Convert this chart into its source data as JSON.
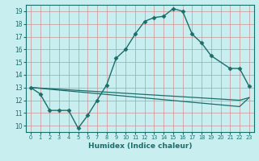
{
  "title": "",
  "xlabel": "Humidex (Indice chaleur)",
  "xlim": [
    -0.5,
    23.5
  ],
  "ylim": [
    9.5,
    19.5
  ],
  "xticks": [
    0,
    1,
    2,
    3,
    4,
    5,
    6,
    7,
    8,
    9,
    10,
    11,
    12,
    13,
    14,
    15,
    16,
    17,
    18,
    19,
    20,
    21,
    22,
    23
  ],
  "yticks": [
    10,
    11,
    12,
    13,
    14,
    15,
    16,
    17,
    18,
    19
  ],
  "bg_color": "#c8eef0",
  "line_color": "#1a6e6a",
  "grid_color": "#d09090",
  "series": [
    {
      "x": [
        0,
        1,
        2,
        3,
        4,
        5,
        6,
        7,
        8,
        9,
        10,
        11,
        12,
        13,
        14,
        15,
        16,
        17,
        18,
        19,
        21,
        22,
        23
      ],
      "y": [
        13.0,
        12.5,
        11.2,
        11.2,
        11.2,
        9.8,
        10.8,
        12.0,
        13.2,
        15.3,
        16.0,
        17.2,
        18.2,
        18.5,
        18.6,
        19.2,
        19.0,
        17.2,
        16.5,
        15.5,
        14.5,
        14.5,
        13.1
      ],
      "marker": "D",
      "markersize": 2.5,
      "lw": 1.0
    },
    {
      "x": [
        0,
        22,
        23
      ],
      "y": [
        13.0,
        12.0,
        12.2
      ],
      "marker": null,
      "markersize": 0,
      "lw": 0.9
    },
    {
      "x": [
        0,
        22,
        23
      ],
      "y": [
        13.0,
        11.5,
        12.2
      ],
      "marker": null,
      "markersize": 0,
      "lw": 0.9
    }
  ]
}
